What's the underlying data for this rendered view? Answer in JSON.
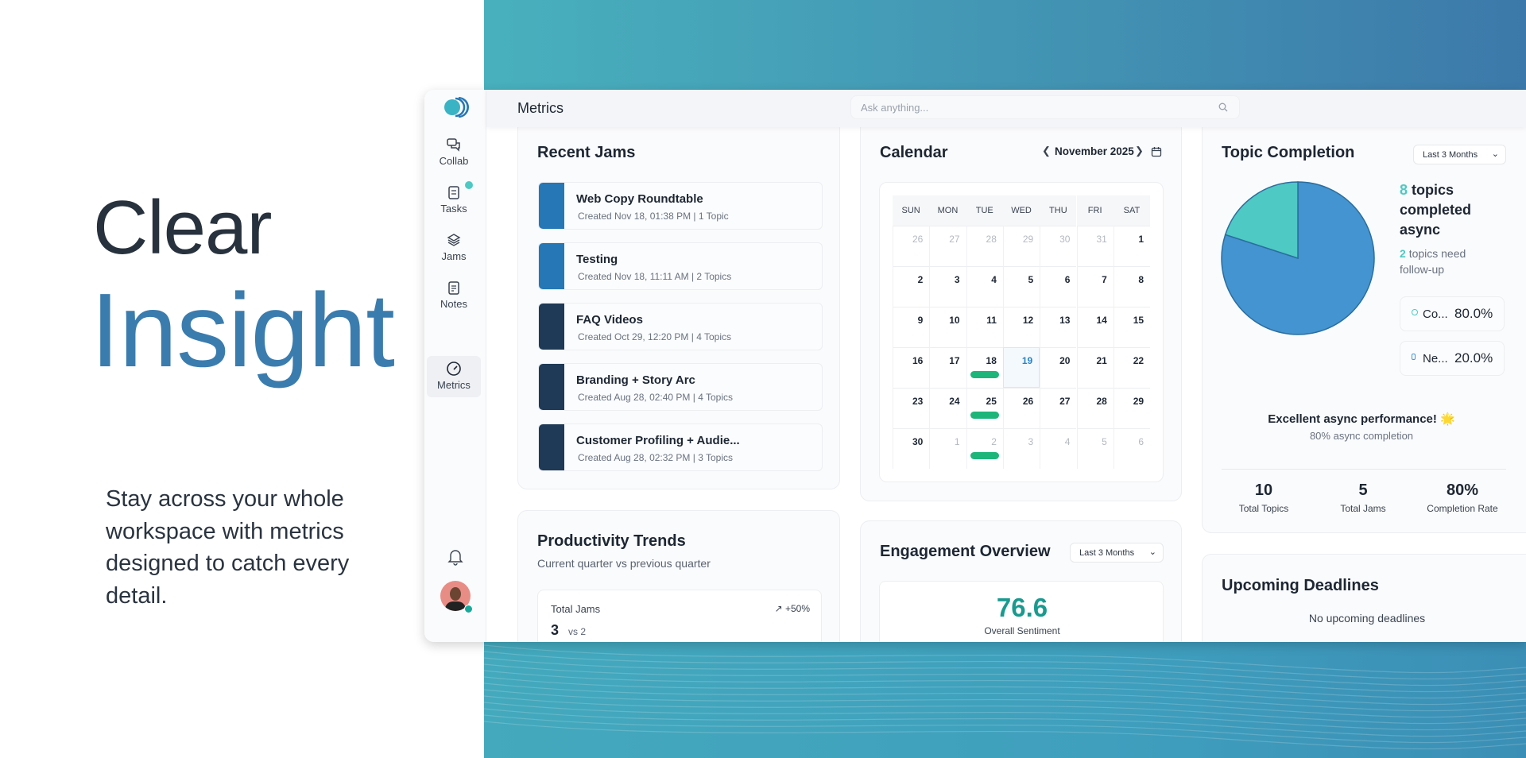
{
  "hero": {
    "line1": "Clear",
    "line2": "Insight",
    "paragraph": "Stay across your whole workspace with metrics designed to catch every detail."
  },
  "colors": {
    "accent": "#3b7cae",
    "teal": "#4ec9c3",
    "pie_blue": "#4394d0",
    "event_green": "#1db57a",
    "sentiment": "#1a9a8f"
  },
  "sidebar": {
    "logo": "logo-icon",
    "items": [
      {
        "label": "Collab",
        "icon": "chat-bubbles-icon"
      },
      {
        "label": "Tasks",
        "icon": "clipboard-icon",
        "badge": true
      },
      {
        "label": "Jams",
        "icon": "layers-icon"
      },
      {
        "label": "Notes",
        "icon": "note-icon"
      },
      {
        "label": "Metrics",
        "icon": "gauge-icon",
        "active": true
      }
    ],
    "bell": "bell-icon",
    "avatar": "avatar"
  },
  "header": {
    "title": "Metrics",
    "search_placeholder": "Ask anything..."
  },
  "recent_jams": {
    "title": "Recent Jams",
    "items": [
      {
        "title": "Web Copy Roundtable",
        "meta": "Created Nov 18, 01:38 PM | 1 Topic",
        "color": "#2577b5"
      },
      {
        "title": "Testing",
        "meta": "Created Nov 18, 11:11 AM | 2 Topics",
        "color": "#2577b5"
      },
      {
        "title": "FAQ Videos",
        "meta": "Created Oct 29, 12:20 PM | 4 Topics",
        "color": "#1e3a56"
      },
      {
        "title": "Branding + Story Arc",
        "meta": "Created Aug 28, 02:40 PM | 4 Topics",
        "color": "#1e3a56"
      },
      {
        "title": "Customer Profiling + Audie...",
        "meta": "Created Aug 28, 02:32 PM | 3 Topics",
        "color": "#1e3a56"
      }
    ]
  },
  "calendar": {
    "title": "Calendar",
    "month": "November 2025",
    "weekdays": [
      "SUN",
      "MON",
      "TUE",
      "WED",
      "THU",
      "FRI",
      "SAT"
    ],
    "weeks": [
      [
        "26",
        "27",
        "28",
        "29",
        "30",
        "31",
        "1"
      ],
      [
        "2",
        "3",
        "4",
        "5",
        "6",
        "7",
        "8"
      ],
      [
        "9",
        "10",
        "11",
        "12",
        "13",
        "14",
        "15"
      ],
      [
        "16",
        "17",
        "18",
        "19",
        "20",
        "21",
        "22"
      ],
      [
        "23",
        "24",
        "25",
        "26",
        "27",
        "28",
        "29"
      ],
      [
        "30",
        "1",
        "2",
        "3",
        "4",
        "5",
        "6"
      ]
    ],
    "today": "19",
    "event_days": [
      "18",
      "25",
      "Dec 2"
    ]
  },
  "topic_completion": {
    "title": "Topic Completion",
    "range": "Last 3 Months",
    "completed_count": "8",
    "completed_text": "topics",
    "completed_text2": "completed",
    "completed_text3": "async",
    "followup_count": "2",
    "followup_text": "topics need",
    "followup_text2": "follow-up",
    "legend": [
      {
        "label": "Co...",
        "value": "80.0%"
      },
      {
        "label": "Ne...",
        "value": "20.0%"
      }
    ],
    "pie": [
      {
        "label": "Completed",
        "value": 80
      },
      {
        "label": "Needs follow-up",
        "value": 20
      }
    ],
    "message": "Excellent async performance! 🌟",
    "submessage": "80% async completion",
    "stats": [
      {
        "value": "10",
        "label": "Total Topics"
      },
      {
        "value": "5",
        "label": "Total Jams"
      },
      {
        "value": "80%",
        "label": "Completion Rate"
      }
    ]
  },
  "productivity": {
    "title": "Productivity Trends",
    "subtitle": "Current quarter vs previous quarter",
    "metric_label": "Total Jams",
    "change": "↗ +50%",
    "value": "3",
    "compare": "vs 2"
  },
  "engagement": {
    "title": "Engagement Overview",
    "range": "Last 3 Months",
    "score": "76.6",
    "score_label": "Overall Sentiment"
  },
  "deadlines": {
    "title": "Upcoming Deadlines",
    "empty": "No upcoming deadlines"
  }
}
